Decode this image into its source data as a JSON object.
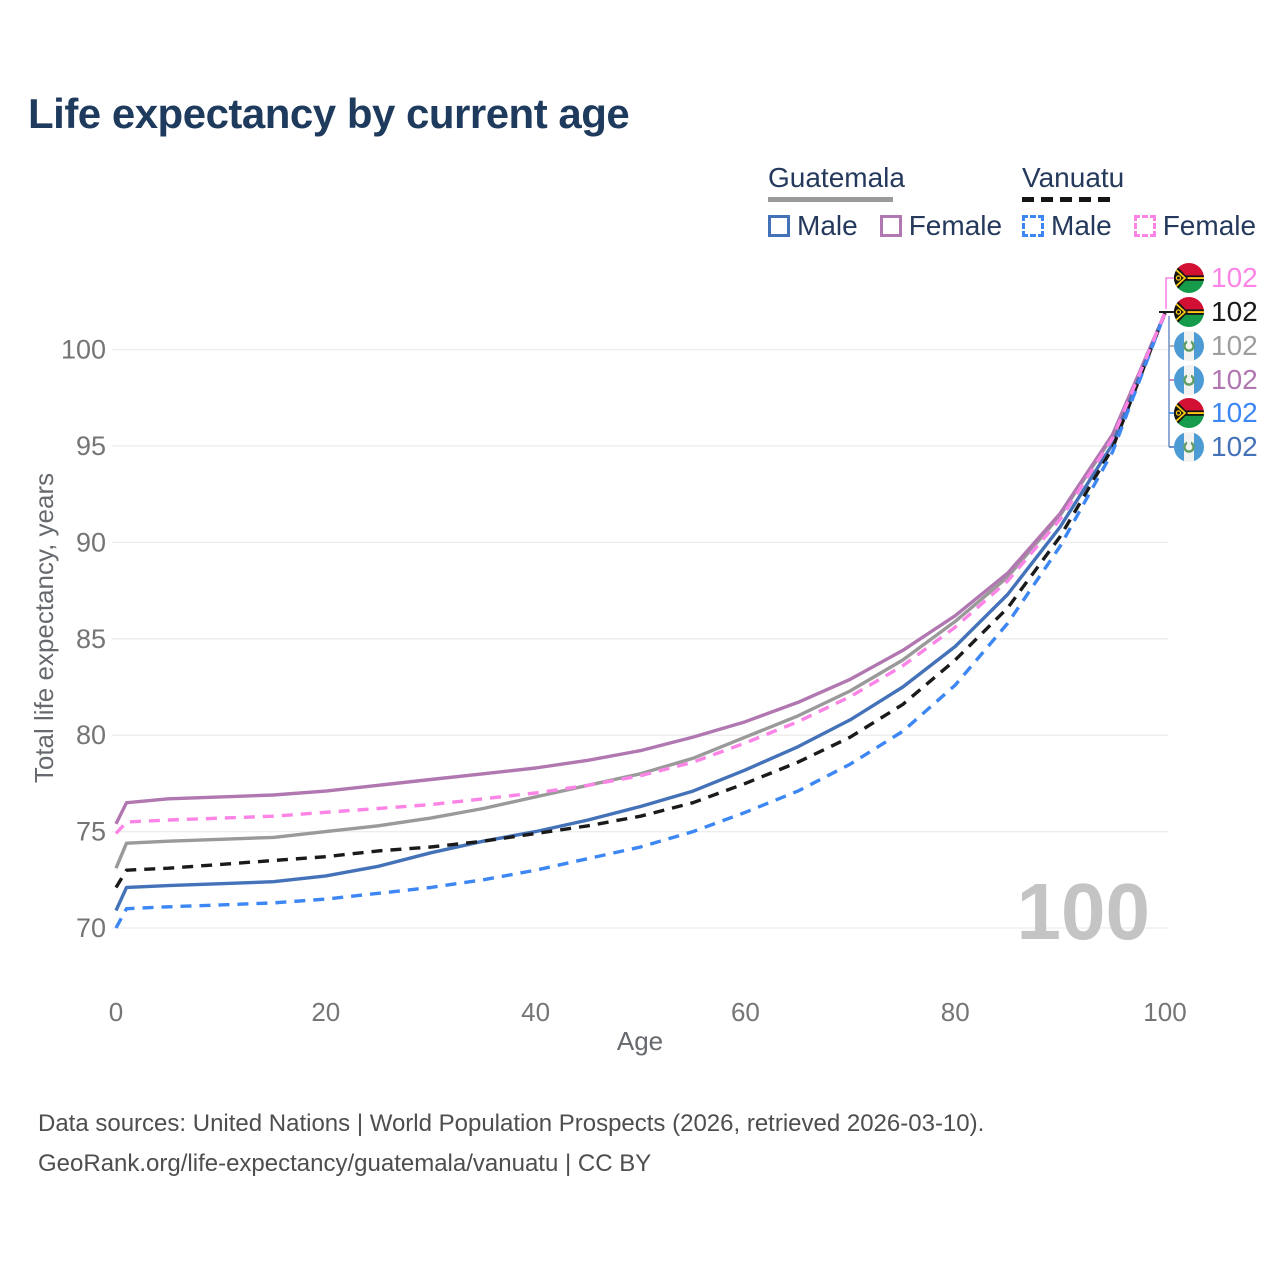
{
  "title": "Life expectancy by current age",
  "legend": {
    "groups": [
      {
        "name": "Guatemala",
        "line_style": "solid",
        "line_color": "#9a9a9a",
        "items": [
          {
            "label": "Male",
            "box_color": "#4472b8",
            "dashed": false
          },
          {
            "label": "Female",
            "box_color": "#b077b0",
            "dashed": false
          }
        ]
      },
      {
        "name": "Vanuatu",
        "line_style": "dashed",
        "line_color": "#151515",
        "items": [
          {
            "label": "Male",
            "box_color": "#3d87f5",
            "dashed": true
          },
          {
            "label": "Female",
            "box_color": "#fc84e6",
            "dashed": true
          }
        ]
      }
    ]
  },
  "chart_data": {
    "type": "line",
    "title": "Life expectancy by current age",
    "xlabel": "Age",
    "ylabel": "Total life expectancy, years",
    "x": [
      0,
      1,
      5,
      10,
      15,
      20,
      25,
      30,
      35,
      40,
      45,
      50,
      55,
      60,
      65,
      70,
      75,
      80,
      85,
      90,
      95,
      100
    ],
    "xticks": [
      0,
      20,
      40,
      60,
      80,
      100
    ],
    "yticks": [
      70,
      75,
      80,
      85,
      90,
      95,
      100
    ],
    "xlim": [
      0,
      100
    ],
    "ylim": [
      69,
      103
    ],
    "grid": true,
    "series": [
      {
        "key": "guatemala_total",
        "name": "Guatemala Total",
        "country": "guatemala",
        "color": "#9a9a9a",
        "dash": false,
        "values": [
          73.1,
          74.4,
          74.5,
          74.6,
          74.7,
          75.0,
          75.3,
          75.7,
          76.2,
          76.8,
          77.4,
          78.0,
          78.8,
          79.9,
          81.0,
          82.3,
          83.9,
          85.9,
          88.2,
          91.4,
          95.5,
          101.9
        ]
      },
      {
        "key": "guatemala_female",
        "name": "Guatemala Female",
        "country": "guatemala",
        "color": "#b077b0",
        "dash": false,
        "values": [
          75.4,
          76.5,
          76.7,
          76.8,
          76.9,
          77.1,
          77.4,
          77.7,
          78.0,
          78.3,
          78.7,
          79.2,
          79.9,
          80.7,
          81.7,
          82.9,
          84.4,
          86.2,
          88.4,
          91.5,
          95.6,
          101.9
        ]
      },
      {
        "key": "guatemala_male",
        "name": "Guatemala Male",
        "country": "guatemala",
        "color": "#4472b8",
        "dash": false,
        "values": [
          70.9,
          72.1,
          72.2,
          72.3,
          72.4,
          72.7,
          73.2,
          73.9,
          74.5,
          75.0,
          75.6,
          76.3,
          77.1,
          78.2,
          79.4,
          80.8,
          82.5,
          84.6,
          87.3,
          90.8,
          95.1,
          101.9
        ]
      },
      {
        "key": "vanuatu_total",
        "name": "Vanuatu Total",
        "country": "vanuatu",
        "color": "#1a1a1a",
        "dash": true,
        "values": [
          72.1,
          73.0,
          73.1,
          73.3,
          73.5,
          73.7,
          74.0,
          74.2,
          74.5,
          74.9,
          75.3,
          75.8,
          76.5,
          77.5,
          78.6,
          79.9,
          81.6,
          83.9,
          86.6,
          90.3,
          94.9,
          101.9
        ]
      },
      {
        "key": "vanuatu_male",
        "name": "Vanuatu Male",
        "country": "vanuatu",
        "color": "#3d87f5",
        "dash": true,
        "values": [
          70.0,
          71.0,
          71.1,
          71.2,
          71.3,
          71.5,
          71.8,
          72.1,
          72.5,
          73.0,
          73.6,
          74.2,
          75.0,
          76.0,
          77.1,
          78.5,
          80.2,
          82.6,
          85.8,
          89.8,
          94.7,
          101.9
        ]
      },
      {
        "key": "vanuatu_female",
        "name": "Vanuatu Female",
        "country": "vanuatu",
        "color": "#fc84e6",
        "dash": true,
        "values": [
          74.9,
          75.5,
          75.6,
          75.7,
          75.8,
          76.0,
          76.2,
          76.4,
          76.7,
          77.0,
          77.4,
          77.9,
          78.6,
          79.6,
          80.7,
          82.0,
          83.6,
          85.6,
          88.0,
          91.2,
          95.4,
          101.9
        ]
      }
    ],
    "end_labels": [
      {
        "value": "102",
        "color": "#fc84e6",
        "flag": "vanuatu",
        "series": "vanuatu_female"
      },
      {
        "value": "102",
        "color": "#1a1a1a",
        "flag": "vanuatu",
        "series": "vanuatu_total"
      },
      {
        "value": "102",
        "color": "#9e9e9e",
        "flag": "guatemala",
        "series": "guatemala_total"
      },
      {
        "value": "102",
        "color": "#b077b0",
        "flag": "guatemala",
        "series": "guatemala_female"
      },
      {
        "value": "102",
        "color": "#3d87f5",
        "flag": "vanuatu",
        "series": "vanuatu_male"
      },
      {
        "value": "102",
        "color": "#4472b8",
        "flag": "guatemala",
        "series": "guatemala_male"
      }
    ],
    "watermark": "100",
    "legend_position": "top-right"
  },
  "footer": {
    "line1": "Data sources: United Nations | World Population Prospects (2026, retrieved 2026-03-10).",
    "line2": "GeoRank.org/life-expectancy/guatemala/vanuatu | CC BY"
  }
}
